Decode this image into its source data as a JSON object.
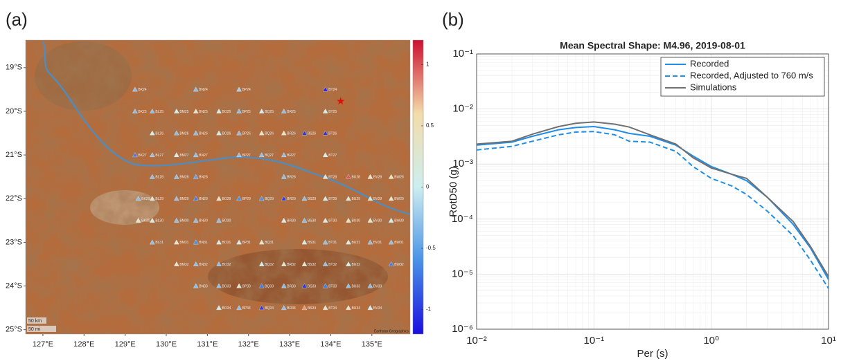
{
  "chart_data": [
    {
      "type": "map",
      "panel_label": "(a)",
      "xlim": [
        126.58,
        135.93
      ],
      "ylim": [
        -25.1,
        -18.37
      ],
      "xticks": [
        {
          "value": 127,
          "label": "127°E"
        },
        {
          "value": 128,
          "label": "128°E"
        },
        {
          "value": 129,
          "label": "129°E"
        },
        {
          "value": 130,
          "label": "130°E"
        },
        {
          "value": 131,
          "label": "131°E"
        },
        {
          "value": 132,
          "label": "132°E"
        },
        {
          "value": 133,
          "label": "133°E"
        },
        {
          "value": 134,
          "label": "134°E"
        },
        {
          "value": 135,
          "label": "135°E"
        }
      ],
      "yticks": [
        {
          "value": -19,
          "label": "19°S"
        },
        {
          "value": -20,
          "label": "20°S"
        },
        {
          "value": -21,
          "label": "21°S"
        },
        {
          "value": -22,
          "label": "22°S"
        },
        {
          "value": -23,
          "label": "23°S"
        },
        {
          "value": -24,
          "label": "24°S"
        },
        {
          "value": -25,
          "label": "25°S"
        }
      ],
      "clim": [
        -1.2,
        1.2
      ],
      "cticks": [
        -1,
        -0.5,
        0,
        0.5,
        1
      ],
      "colormap": [
        "#1a0ee0",
        "#4a92e6",
        "#cdeef0",
        "#f3dcaa",
        "#cc1030"
      ],
      "scale_labels": [
        "50 km",
        "50 mi"
      ],
      "attribution": "Earthstar Geographics",
      "epicenter": {
        "lon": 134.24,
        "lat": -19.77,
        "color": "#e01010"
      },
      "stations": {
        "names": [
          "BK24",
          "BN24",
          "BP24",
          "BT24",
          "BK25",
          "BL25",
          "BM25",
          "BN25",
          "BO25",
          "BP25",
          "BQ25",
          "BR25",
          "BT25",
          "BL26",
          "BM26",
          "BN26",
          "BO26",
          "BP26",
          "BQ26",
          "BR26",
          "BS26",
          "BT26",
          "BK27",
          "BL27",
          "BM27",
          "BN27",
          "BP27",
          "BQ27",
          "BR27",
          "BT27",
          "BL28",
          "BM28",
          "BN28",
          "BR28",
          "BT28",
          "BU28",
          "BV28",
          "BW28",
          "BK29",
          "BL29",
          "BM29",
          "BN29",
          "BO29",
          "BP29",
          "BQ29",
          "BR29",
          "BS29",
          "BT29",
          "BU29",
          "BV29",
          "BW29",
          "BK30",
          "BL30",
          "BM30",
          "BN30",
          "BO30",
          "BR30",
          "BS30",
          "BT30",
          "BU30",
          "BV30",
          "BW30",
          "BL31",
          "BM31",
          "BN31",
          "BO31",
          "BP31",
          "BQ31",
          "BS31",
          "BT31",
          "BU31",
          "BV31",
          "BW31",
          "BM32",
          "BN32",
          "BO32",
          "BQ32",
          "BR32",
          "BS32",
          "BT32",
          "BU32",
          "BW32",
          "BN33",
          "BO33",
          "BP33",
          "BQ33",
          "BR33",
          "BS33",
          "BT33",
          "BU33",
          "BV33",
          "BO34",
          "BP34",
          "BQ34",
          "BR34",
          "BS34",
          "BT34",
          "BU34",
          "BV34"
        ],
        "lon": [
          129.24,
          130.72,
          131.77,
          133.87,
          129.24,
          129.66,
          130.25,
          130.72,
          131.28,
          131.77,
          132.32,
          132.86,
          133.87,
          129.66,
          130.25,
          130.72,
          131.28,
          131.77,
          132.32,
          132.86,
          133.36,
          133.87,
          129.24,
          129.66,
          130.25,
          130.72,
          131.77,
          132.32,
          132.86,
          133.87,
          129.66,
          130.25,
          130.72,
          132.86,
          133.87,
          134.43,
          134.96,
          135.47,
          129.32,
          129.66,
          130.25,
          130.72,
          131.28,
          131.77,
          132.32,
          132.86,
          133.36,
          133.87,
          134.43,
          134.96,
          135.47,
          129.32,
          129.66,
          130.25,
          130.72,
          131.28,
          132.86,
          133.36,
          133.87,
          134.43,
          134.96,
          135.47,
          129.66,
          130.25,
          130.72,
          131.28,
          131.77,
          132.32,
          133.36,
          133.87,
          134.43,
          134.96,
          135.47,
          130.25,
          130.72,
          131.28,
          132.32,
          132.86,
          133.36,
          133.87,
          134.43,
          135.47,
          130.72,
          131.28,
          131.77,
          132.32,
          132.86,
          133.36,
          133.87,
          134.43,
          134.96,
          131.28,
          131.77,
          132.32,
          132.86,
          133.36,
          133.87,
          134.43,
          134.96
        ],
        "lat": [
          -19.5,
          -19.5,
          -19.5,
          -19.5,
          -20,
          -20,
          -20,
          -20,
          -20,
          -20,
          -20,
          -20,
          -20,
          -20.5,
          -20.5,
          -20.5,
          -20.5,
          -20.5,
          -20.5,
          -20.5,
          -20.5,
          -20.5,
          -21,
          -21,
          -21,
          -21,
          -21,
          -21,
          -21,
          -21,
          -21.5,
          -21.5,
          -21.5,
          -21.5,
          -21.5,
          -21.5,
          -21.5,
          -21.5,
          -22,
          -22,
          -22,
          -22,
          -22,
          -22,
          -22,
          -22,
          -22,
          -22,
          -22,
          -22,
          -22,
          -22.5,
          -22.5,
          -22.5,
          -22.5,
          -22.5,
          -22.5,
          -22.5,
          -22.5,
          -22.5,
          -22.5,
          -22.5,
          -23,
          -23,
          -23,
          -23,
          -23,
          -23,
          -23,
          -23,
          -23,
          -23,
          -23,
          -23.5,
          -23.5,
          -23.5,
          -23.5,
          -23.5,
          -23.5,
          -23.5,
          -23.5,
          -23.5,
          -24,
          -24,
          -24,
          -24,
          -24,
          -24,
          -24,
          -24,
          -24,
          -24.5,
          -24.5,
          -24.5,
          -24.5,
          -24.5,
          -24.5,
          -24.5,
          -24.5
        ],
        "values": [
          -0.3,
          -0.3,
          -0.2,
          -1.1,
          -0.3,
          -0.3,
          0,
          0.3,
          0,
          -0.3,
          0,
          -0.3,
          0,
          0,
          -0.3,
          -0.3,
          0,
          -0.3,
          0.3,
          0.3,
          -1.0,
          -1.0,
          -0.7,
          -0.3,
          0,
          -0.3,
          -0.3,
          -0.3,
          -0.3,
          0,
          -0.3,
          -0.3,
          -0.5,
          -0.3,
          0.3,
          1.0,
          0.3,
          0.4,
          -0.3,
          0.3,
          -0.3,
          -0.7,
          0.3,
          -0.6,
          -0.6,
          -1.0,
          -0.3,
          0,
          0.2,
          0.3,
          0.3,
          0.3,
          0,
          -0.3,
          -0.3,
          -0.3,
          0,
          -0.3,
          0,
          0.4,
          0.3,
          0,
          -0.3,
          0.3,
          -0.6,
          0,
          0,
          0.3,
          0,
          -0.3,
          0,
          -0.3,
          -0.3,
          0.3,
          -0.3,
          -0.3,
          0,
          0.3,
          0.3,
          -0.3,
          0,
          -0.7,
          -0.3,
          -0.3,
          0.3,
          -0.7,
          -0.3,
          -1.0,
          -0.7,
          -0.3,
          -0.3,
          0,
          -0.3,
          -1.0,
          -0.3,
          0.8,
          0.3,
          0.3,
          0
        ]
      }
    },
    {
      "type": "line",
      "panel_label": "(b)",
      "title": "Mean Spectral Shape: M4.96, 2019-08-01",
      "xlabel": "Per (s)",
      "ylabel": "RotD50 (g)",
      "xscale": "log",
      "yscale": "log",
      "grid": true,
      "legend": "top-right",
      "xlim": [
        0.01,
        10
      ],
      "ylim": [
        1e-06,
        0.1
      ],
      "xticks": [
        {
          "value": 0.01,
          "label": "10⁻²"
        },
        {
          "value": 0.1,
          "label": "10⁻¹"
        },
        {
          "value": 1,
          "label": "10⁰"
        },
        {
          "value": 10,
          "label": "10¹"
        }
      ],
      "yticks": [
        {
          "value": 1e-06,
          "label": "10⁻⁶"
        },
        {
          "value": 1e-05,
          "label": "10⁻⁵"
        },
        {
          "value": 0.0001,
          "label": "10⁻⁴"
        },
        {
          "value": 0.001,
          "label": "10⁻³"
        },
        {
          "value": 0.01,
          "label": "10⁻²"
        },
        {
          "value": 0.1,
          "label": "10⁻¹"
        }
      ],
      "xminor": [
        0.02,
        0.03,
        0.04,
        0.05,
        0.06,
        0.07,
        0.08,
        0.09,
        0.2,
        0.3,
        0.4,
        0.5,
        0.6,
        0.7,
        0.8,
        0.9,
        2,
        3,
        4,
        5,
        6,
        7,
        8,
        9
      ],
      "yminor": [
        2e-06,
        3e-06,
        4e-06,
        5e-06,
        6e-06,
        7e-06,
        8e-06,
        9e-06,
        2e-05,
        3e-05,
        4e-05,
        5e-05,
        6e-05,
        7e-05,
        8e-05,
        9e-05,
        0.0002,
        0.0003,
        0.0004,
        0.0005,
        0.0006,
        0.0007,
        0.0008,
        0.0009,
        0.002,
        0.003,
        0.004,
        0.005,
        0.006,
        0.007,
        0.008,
        0.009,
        0.02,
        0.03,
        0.04,
        0.05,
        0.06,
        0.07,
        0.08,
        0.09
      ],
      "x": [
        0.01,
        0.02,
        0.03,
        0.05,
        0.07,
        0.1,
        0.15,
        0.2,
        0.3,
        0.5,
        0.7,
        1,
        1.5,
        2,
        3,
        5,
        7,
        10
      ],
      "series": [
        {
          "name": "Recorded",
          "color": "#1f8ee8",
          "dashed": false,
          "values": [
            0.0022,
            0.0025,
            0.0032,
            0.0042,
            0.0046,
            0.0048,
            0.0042,
            0.0036,
            0.0032,
            0.0022,
            0.0014,
            0.0009,
            0.00065,
            0.0005,
            0.00025,
            8e-05,
            3e-05,
            8e-06
          ]
        },
        {
          "name": "Recorded, Adjusted to 760 m/s",
          "color": "#1f8ee8",
          "dashed": true,
          "values": [
            0.0018,
            0.0021,
            0.0026,
            0.0034,
            0.0038,
            0.0039,
            0.0034,
            0.0026,
            0.0025,
            0.0017,
            0.0009,
            0.00055,
            0.0004,
            0.00028,
            0.00014,
            5e-05,
            1.8e-05,
            5.5e-06
          ]
        },
        {
          "name": "Simulations",
          "color": "#707070",
          "dashed": false,
          "values": [
            0.0023,
            0.0026,
            0.0035,
            0.0048,
            0.0055,
            0.0058,
            0.0053,
            0.0047,
            0.0034,
            0.0023,
            0.0013,
            0.00085,
            0.00065,
            0.00055,
            0.00025,
            9e-05,
            3.2e-05,
            9e-06
          ]
        }
      ]
    }
  ]
}
